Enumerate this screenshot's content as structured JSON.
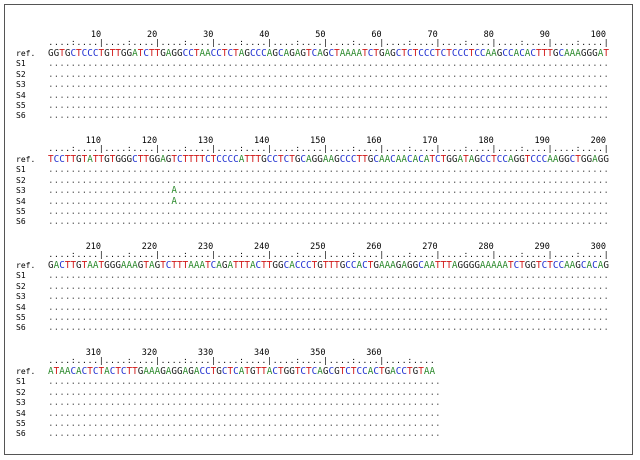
{
  "blocks": [
    {
      "ticks": [
        10,
        20,
        30,
        40,
        50,
        60,
        70,
        80,
        90,
        100
      ],
      "ref": "GGTGCTCCCTGTTGGATCTTGAGGCCTAACCTCTAGCCCAGCAGAGTCAGCTAAAATCTGAGCTCTCCCTCTCCCTCCAAGCCACACTTTGCAAAGGGAT",
      "samples": [
        {
          "name": "S1",
          "seq": "...................................................................................................."
        },
        {
          "name": "S2",
          "seq": "...................................................................................................."
        },
        {
          "name": "S3",
          "seq": "...................................................................................................."
        },
        {
          "name": "S4",
          "seq": "...................................................................................................."
        },
        {
          "name": "S5",
          "seq": "...................................................................................................."
        },
        {
          "name": "S6",
          "seq": "...................................................................................................."
        }
      ]
    },
    {
      "ticks": [
        110,
        120,
        130,
        140,
        150,
        160,
        170,
        180,
        190,
        200
      ],
      "ref": "TCCTTGTATTGTGGGCTTGGAGTCTTTTCTCCCCATTTGCCTCTGCAGGAAGCCCTTGCAACAACACATCTGGATAGCCTCCAGGTCCCAAGGCTGGAGG",
      "samples": [
        {
          "name": "S1",
          "seq": "...................................................................................................."
        },
        {
          "name": "S2",
          "seq": "...................................................................................................."
        },
        {
          "name": "S3",
          "seq": "......................A............................................................................."
        },
        {
          "name": "S4",
          "seq": "......................A............................................................................."
        },
        {
          "name": "S5",
          "seq": "...................................................................................................."
        },
        {
          "name": "S6",
          "seq": "...................................................................................................."
        }
      ]
    },
    {
      "ticks": [
        210,
        220,
        230,
        240,
        250,
        260,
        270,
        280,
        290,
        300
      ],
      "ref": "GACTTGTAATGGGAAAGTAGTCTTTAAATCAGATTTACTTGGCACCCTGTTTGCCACTGAAAGAGGCAATTTAGGGGAAAAATCTGGTCTCCAAGCACAG",
      "samples": [
        {
          "name": "S1",
          "seq": "...................................................................................................."
        },
        {
          "name": "S2",
          "seq": "...................................................................................................."
        },
        {
          "name": "S3",
          "seq": "...................................................................................................."
        },
        {
          "name": "S4",
          "seq": "...................................................................................................."
        },
        {
          "name": "S5",
          "seq": "...................................................................................................."
        },
        {
          "name": "S6",
          "seq": "...................................................................................................."
        }
      ]
    },
    {
      "ticks": [
        310,
        320,
        330,
        340,
        350,
        360
      ],
      "ref": "ATAACACTCTACTCTTGAAAGAGGAGACCTGCTCATGTTACTGGTCTCAGCGTCTCCACTGACCTGTAA",
      "samples": [
        {
          "name": "S1",
          "seq": "......................................................................"
        },
        {
          "name": "S2",
          "seq": "......................................................................"
        },
        {
          "name": "S3",
          "seq": "......................................................................"
        },
        {
          "name": "S4",
          "seq": "......................................................................"
        },
        {
          "name": "S5",
          "seq": "......................................................................"
        },
        {
          "name": "S6",
          "seq": "......................................................................"
        }
      ]
    }
  ],
  "ref_label": "ref.",
  "colors": {
    "A": "#2e8b2e",
    "C": "#1f2fd0",
    "G": "#222222",
    "T": "#d01818"
  }
}
